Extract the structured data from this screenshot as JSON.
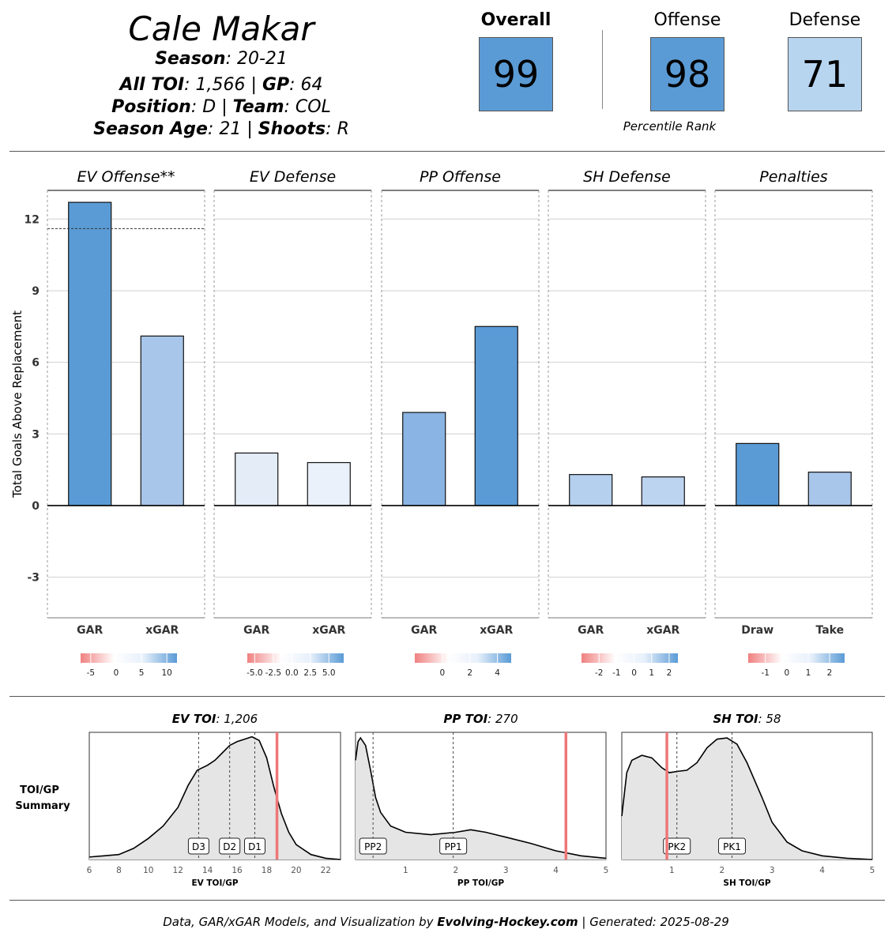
{
  "player": {
    "name": "Cale Makar",
    "season_label": "Season",
    "season": "20-21",
    "toi_label": "All TOI",
    "toi": "1,566",
    "gp_label": "GP",
    "gp": "64",
    "position_label": "Position",
    "position": "D",
    "team_label": "Team",
    "team": "COL",
    "age_label": "Season Age",
    "age": "21",
    "shoots_label": "Shoots",
    "shoots": "R"
  },
  "ranks": {
    "overall_label": "Overall",
    "overall": "99",
    "offense_label": "Offense",
    "offense": "98",
    "defense_label": "Defense",
    "defense": "71",
    "caption": "Percentile Rank",
    "colors": {
      "overall": "#5b9bd5",
      "offense": "#5b9bd5",
      "defense": "#b8d5f0"
    }
  },
  "footer": {
    "prefix": "Data, GAR/xGAR Models, and Visualization by ",
    "brand": "Evolving-Hockey.com",
    "suffix": " | Generated: 2025-08-29"
  },
  "chart_data": [
    {
      "type": "bar",
      "ylabel": "Total Goals Above Replacement",
      "ylim": [
        -4.7,
        13.2
      ],
      "yticks": [
        -3,
        0,
        3,
        6,
        9,
        12
      ],
      "facets": [
        {
          "title": "EV Offense**",
          "categories": [
            "GAR",
            "xGAR"
          ],
          "values": [
            12.7,
            7.1
          ],
          "colors": [
            "#5a9bd6",
            "#a8c6ea"
          ],
          "reference_line": 11.6,
          "legend": {
            "ticks": [
              "-5",
              "0",
              "5",
              "10"
            ],
            "tick_positions": [
              -5,
              0,
              5,
              10
            ],
            "range": [
              -7,
              12
            ]
          }
        },
        {
          "title": "EV Defense",
          "categories": [
            "GAR",
            "xGAR"
          ],
          "values": [
            2.2,
            1.8
          ],
          "colors": [
            "#e4ecf8",
            "#eaf1fa"
          ],
          "legend": {
            "ticks": [
              "-5.0",
              "-2.5",
              "0.0",
              "2.5",
              "5.0"
            ],
            "tick_positions": [
              -5,
              -2.5,
              0,
              2.5,
              5
            ],
            "range": [
              -6,
              7
            ]
          }
        },
        {
          "title": "PP Offense",
          "categories": [
            "GAR",
            "xGAR"
          ],
          "values": [
            3.9,
            7.5
          ],
          "colors": [
            "#8ab4e3",
            "#5a9bd6"
          ],
          "legend": {
            "ticks": [
              "0",
              "2",
              "4"
            ],
            "tick_positions": [
              0,
              2,
              4
            ],
            "range": [
              -2,
              5
            ]
          }
        },
        {
          "title": "SH Defense",
          "categories": [
            "GAR",
            "xGAR"
          ],
          "values": [
            1.3,
            1.2
          ],
          "colors": [
            "#b5cfee",
            "#bdd4f0"
          ],
          "legend": {
            "ticks": [
              "-2",
              "-1",
              "0",
              "1",
              "2"
            ],
            "tick_positions": [
              -2,
              -1,
              0,
              1,
              2
            ],
            "range": [
              -3,
              2.5
            ]
          }
        },
        {
          "title": "Penalties",
          "categories": [
            "Draw",
            "Take"
          ],
          "values": [
            2.6,
            1.4
          ],
          "colors": [
            "#5a9bd6",
            "#a8c6ea"
          ],
          "legend": {
            "ticks": [
              "-1",
              "0",
              "1",
              "2"
            ],
            "tick_positions": [
              -1,
              0,
              1,
              2
            ],
            "range": [
              -1.8,
              2.7
            ]
          }
        }
      ]
    },
    {
      "type": "area",
      "row_label": "TOI/GP Summary",
      "panels": [
        {
          "title_label": "EV TOI",
          "title_value": "1,206",
          "xlabel": "EV TOI/GP",
          "xlim": [
            6,
            23
          ],
          "xticks": [
            6,
            8,
            10,
            12,
            14,
            16,
            18,
            20,
            22
          ],
          "x": [
            6,
            7,
            8,
            9,
            10,
            11,
            12,
            12.7,
            13.3,
            14,
            14.5,
            15,
            15.5,
            16,
            16.5,
            17,
            17.5,
            18,
            18.5,
            19,
            19.5,
            20,
            21,
            22,
            23
          ],
          "y": [
            0.02,
            0.03,
            0.04,
            0.09,
            0.17,
            0.27,
            0.42,
            0.6,
            0.72,
            0.76,
            0.8,
            0.86,
            0.92,
            0.95,
            0.97,
            0.99,
            0.96,
            0.82,
            0.58,
            0.37,
            0.22,
            0.12,
            0.04,
            0.01,
            0.0
          ],
          "markers": [
            {
              "label": "D3",
              "x": 13.4
            },
            {
              "label": "D2",
              "x": 15.5
            },
            {
              "label": "D1",
              "x": 17.2
            }
          ],
          "player_value": 18.7
        },
        {
          "title_label": "PP TOI",
          "title_value": "270",
          "xlabel": "PP TOI/GP",
          "xlim": [
            0,
            5
          ],
          "xticks": [
            1,
            2,
            3,
            4,
            5
          ],
          "x": [
            0,
            0.05,
            0.1,
            0.2,
            0.3,
            0.4,
            0.5,
            0.7,
            1.0,
            1.5,
            2.0,
            2.3,
            2.6,
            3.0,
            3.5,
            4.0,
            4.5,
            5.0
          ],
          "y": [
            0.8,
            0.95,
            0.98,
            0.92,
            0.72,
            0.5,
            0.38,
            0.27,
            0.22,
            0.2,
            0.22,
            0.24,
            0.22,
            0.18,
            0.13,
            0.07,
            0.03,
            0.01
          ],
          "markers": [
            {
              "label": "PP2",
              "x": 0.35
            },
            {
              "label": "PP1",
              "x": 1.95
            }
          ],
          "player_value": 4.2
        },
        {
          "title_label": "SH TOI",
          "title_value": "58",
          "xlabel": "SH TOI/GP",
          "xlim": [
            0,
            5
          ],
          "xticks": [
            1,
            2,
            3,
            4,
            5
          ],
          "x": [
            0,
            0.1,
            0.2,
            0.4,
            0.6,
            0.8,
            0.95,
            1.1,
            1.3,
            1.5,
            1.7,
            1.9,
            2.1,
            2.3,
            2.5,
            2.8,
            3.0,
            3.3,
            3.6,
            4.0,
            4.5,
            5.0
          ],
          "y": [
            0.35,
            0.7,
            0.8,
            0.84,
            0.82,
            0.74,
            0.7,
            0.71,
            0.72,
            0.78,
            0.9,
            0.97,
            0.98,
            0.93,
            0.78,
            0.5,
            0.3,
            0.14,
            0.07,
            0.03,
            0.01,
            0.0
          ],
          "markers": [
            {
              "label": "PK2",
              "x": 1.1
            },
            {
              "label": "PK1",
              "x": 2.2
            }
          ],
          "player_value": 0.9
        }
      ]
    }
  ]
}
